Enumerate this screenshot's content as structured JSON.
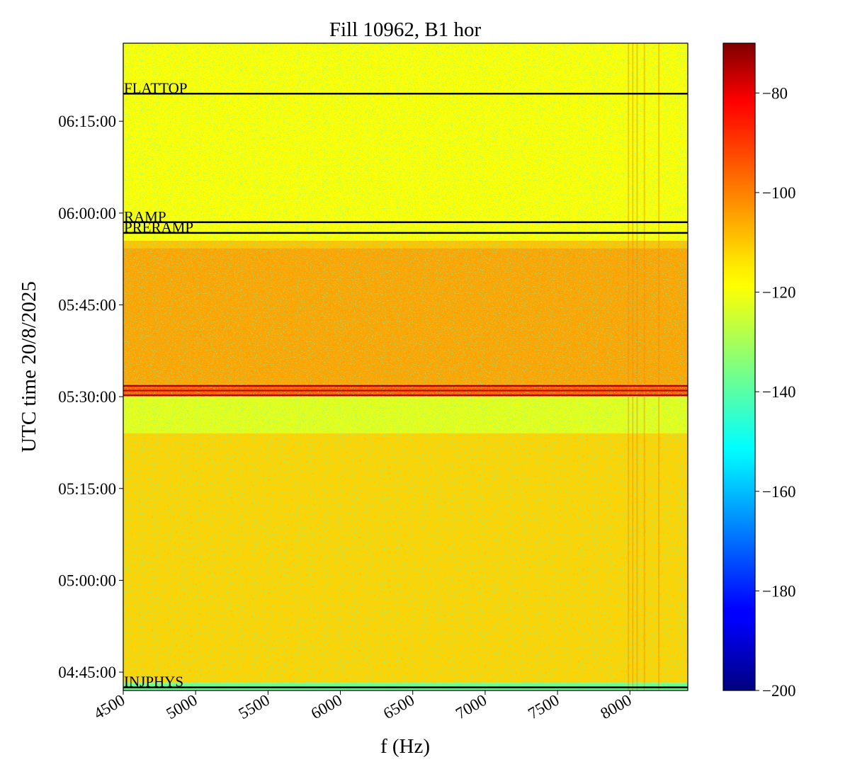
{
  "chart_data": {
    "type": "heatmap",
    "title": "Fill 10962, B1 hor",
    "xlabel": "f (Hz)",
    "ylabel": "UTC time 20/8/2025",
    "xlim": [
      4500,
      8400
    ],
    "ylim": [
      "04:42:00",
      "06:27:45"
    ],
    "x_ticks": [
      "4500",
      "5000",
      "5500",
      "6000",
      "6500",
      "7000",
      "7500",
      "8000"
    ],
    "y_ticks": [
      "04:45:00",
      "05:00:00",
      "05:15:00",
      "05:30:00",
      "05:45:00",
      "06:00:00",
      "06:15:00"
    ],
    "colorbar": {
      "colormap": "jet",
      "range": [
        -200,
        -70
      ],
      "ticks": [
        "−80",
        "−100",
        "−120",
        "−140",
        "−160",
        "−180",
        "−200"
      ]
    },
    "phase_markers": [
      {
        "label": "FLATTOP",
        "time": "06:19:30"
      },
      {
        "label": "RAMP",
        "time": "05:58:30"
      },
      {
        "label": "PRERAMP",
        "time": "05:56:45"
      },
      {
        "label": "INJPHYS",
        "time": "04:42:30"
      }
    ],
    "red_lines_time": [
      "05:30:15",
      "05:31:00",
      "05:31:45"
    ],
    "intensity_bands": [
      {
        "from": "04:42:00",
        "to": "04:43:15",
        "level_db": -137
      },
      {
        "from": "04:43:15",
        "to": "05:24:00",
        "level_db": -113
      },
      {
        "from": "05:24:00",
        "to": "05:30:00",
        "level_db": -122
      },
      {
        "from": "05:30:00",
        "to": "05:32:00",
        "level_db": -98
      },
      {
        "from": "05:32:00",
        "to": "05:54:15",
        "level_db": -107
      },
      {
        "from": "05:54:15",
        "to": "05:55:30",
        "level_db": -111
      },
      {
        "from": "05:55:30",
        "to": "06:27:45",
        "level_db": -119
      }
    ],
    "vertical_features_hz": [
      7990,
      8020,
      8050,
      8100,
      8200
    ]
  }
}
